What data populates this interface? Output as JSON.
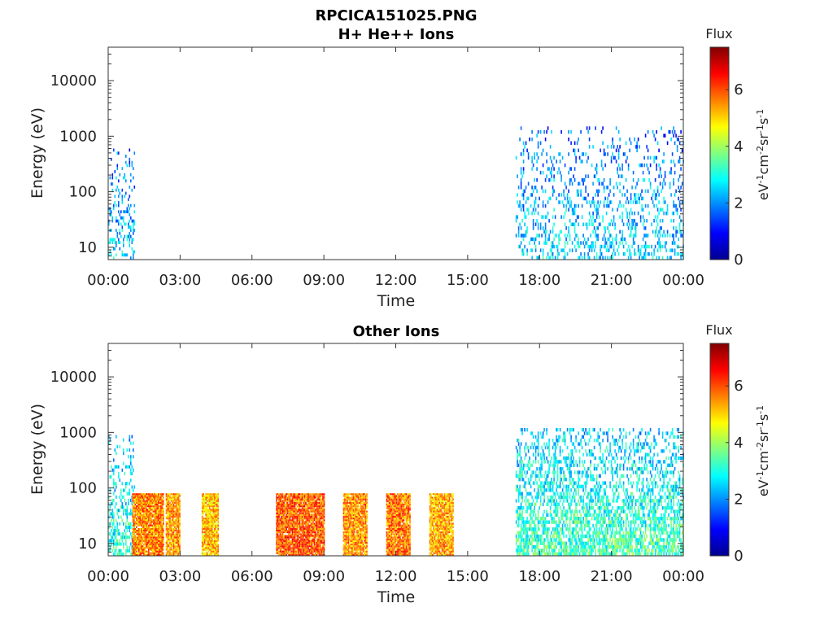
{
  "figure": {
    "title": "RPCICA151025.PNG"
  },
  "chart_data": [
    {
      "type": "heatmap",
      "title": "H+ He++ Ions",
      "xlabel": "Time",
      "ylabel": "Energy (eV)",
      "x_ticks": [
        "00:00",
        "03:00",
        "06:00",
        "09:00",
        "12:00",
        "15:00",
        "18:00",
        "21:00",
        "00:00"
      ],
      "x_range_hours": [
        0,
        24
      ],
      "y_scale": "log",
      "y_ticks": [
        "10",
        "100",
        "1000",
        "10000"
      ],
      "y_range": [
        6,
        40000
      ],
      "colorbar": {
        "label_top": "Flux",
        "unit_label": "eV-1cm-2sr-1s-1",
        "ticks": [
          "0",
          "2",
          "4",
          "6"
        ],
        "range": [
          0,
          7.5
        ],
        "colormap": "jet"
      },
      "activity_blocks": [
        {
          "start_h": 0.0,
          "end_h": 1.1,
          "e_min": 6,
          "e_max": 600,
          "flux": 2.6,
          "density": 0.35
        },
        {
          "start_h": 17.0,
          "end_h": 24.0,
          "e_min": 6,
          "e_max": 1500,
          "flux": 2.6,
          "density": 0.3
        }
      ]
    },
    {
      "type": "heatmap",
      "title": "Other Ions",
      "xlabel": "Time",
      "ylabel": "Energy (eV)",
      "x_ticks": [
        "00:00",
        "03:00",
        "06:00",
        "09:00",
        "12:00",
        "15:00",
        "18:00",
        "21:00",
        "00:00"
      ],
      "x_range_hours": [
        0,
        24
      ],
      "y_scale": "log",
      "y_ticks": [
        "10",
        "100",
        "1000",
        "10000"
      ],
      "y_range": [
        6,
        40000
      ],
      "colorbar": {
        "label_top": "Flux",
        "unit_label": "eV-1cm-2sr-1s-1",
        "ticks": [
          "0",
          "2",
          "4",
          "6"
        ],
        "range": [
          0,
          7.5
        ],
        "colormap": "jet"
      },
      "activity_blocks": [
        {
          "start_h": 0.0,
          "end_h": 1.1,
          "e_min": 6,
          "e_max": 900,
          "flux": 3.2,
          "density": 0.55
        },
        {
          "start_h": 1.0,
          "end_h": 2.3,
          "e_min": 6,
          "e_max": 80,
          "flux": 5.6,
          "density": 0.95
        },
        {
          "start_h": 2.4,
          "end_h": 3.0,
          "e_min": 6,
          "e_max": 80,
          "flux": 5.4,
          "density": 0.95
        },
        {
          "start_h": 3.9,
          "end_h": 4.6,
          "e_min": 6,
          "e_max": 80,
          "flux": 5.2,
          "density": 0.95
        },
        {
          "start_h": 7.0,
          "end_h": 9.0,
          "e_min": 6,
          "e_max": 80,
          "flux": 5.9,
          "density": 0.95
        },
        {
          "start_h": 9.8,
          "end_h": 10.8,
          "e_min": 6,
          "e_max": 80,
          "flux": 5.5,
          "density": 0.95
        },
        {
          "start_h": 11.6,
          "end_h": 12.6,
          "e_min": 6,
          "e_max": 80,
          "flux": 5.7,
          "density": 0.95
        },
        {
          "start_h": 13.4,
          "end_h": 14.4,
          "e_min": 6,
          "e_max": 80,
          "flux": 5.3,
          "density": 0.95
        },
        {
          "start_h": 17.0,
          "end_h": 24.0,
          "e_min": 6,
          "e_max": 1200,
          "flux": 3.4,
          "density": 0.75
        }
      ]
    }
  ]
}
